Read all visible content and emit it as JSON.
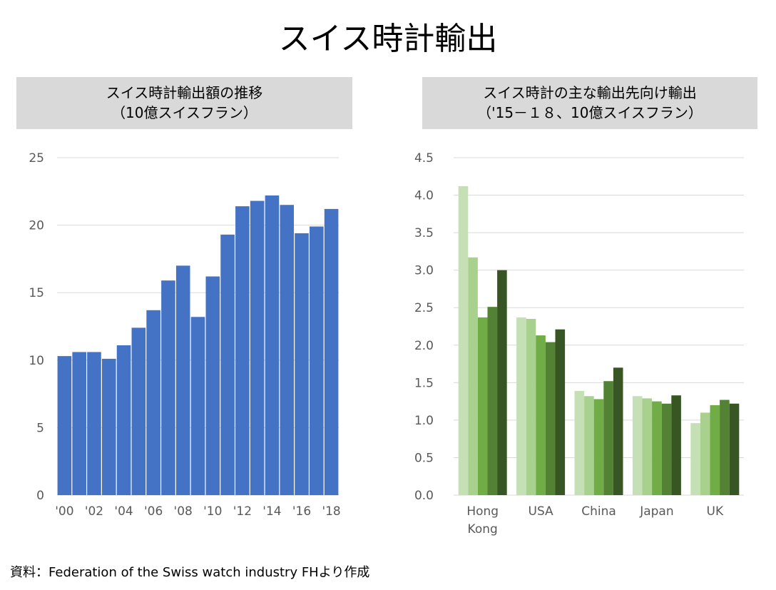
{
  "title": "スイス時計輸出",
  "source": "資料：Federation of the Swiss watch industry FHより作成",
  "chart_data": [
    {
      "type": "bar",
      "title": "スイス時計輸出額の推移",
      "subtitle": "（10億スイスフラン）",
      "categories": [
        "'00",
        "'01",
        "'02",
        "'03",
        "'04",
        "'05",
        "'06",
        "'07",
        "'08",
        "'09",
        "'10",
        "'11",
        "'12",
        "'13",
        "'14",
        "'15",
        "'16",
        "'17",
        "'18"
      ],
      "tick_labels": [
        "'00",
        "'02",
        "'04",
        "'06",
        "'08",
        "'10",
        "'12",
        "'14",
        "'16",
        "'18"
      ],
      "values": [
        10.3,
        10.6,
        10.6,
        10.1,
        11.1,
        12.4,
        13.7,
        15.9,
        17.0,
        13.2,
        16.2,
        19.3,
        21.4,
        21.8,
        22.2,
        21.5,
        19.4,
        19.9,
        21.2
      ],
      "ylim": [
        0,
        25
      ],
      "yticks": [
        0,
        5,
        10,
        15,
        20,
        25
      ],
      "grid": true,
      "color": "#4472c4"
    },
    {
      "type": "bar",
      "title": "スイス時計の主な輸出先向け輸出",
      "subtitle": "（'15－１８、10億スイスフラン）",
      "categories": [
        "Hong Kong",
        "USA",
        "China",
        "Japan",
        "UK"
      ],
      "category_lines": [
        [
          "Hong",
          "Kong"
        ],
        [
          "USA"
        ],
        [
          "China"
        ],
        [
          "Japan"
        ],
        [
          "UK"
        ]
      ],
      "series": [
        {
          "values": [
            4.12,
            2.37,
            1.39,
            1.32,
            0.96
          ],
          "color": "#c5e0b4"
        },
        {
          "values": [
            3.17,
            2.35,
            1.32,
            1.29,
            1.1
          ],
          "color": "#a9d18e"
        },
        {
          "values": [
            2.37,
            2.13,
            1.28,
            1.25,
            1.2
          ],
          "color": "#70ad47"
        },
        {
          "values": [
            2.51,
            2.04,
            1.52,
            1.22,
            1.27
          ],
          "color": "#548235"
        },
        {
          "values": [
            3.0,
            2.21,
            1.7,
            1.33,
            1.22
          ],
          "color": "#375623"
        }
      ],
      "ylim": [
        0,
        4.5
      ],
      "yticks": [
        "0.0",
        "0.5",
        "1.0",
        "1.5",
        "2.0",
        "2.5",
        "3.0",
        "3.5",
        "4.0",
        "4.5"
      ],
      "grid": true
    }
  ]
}
